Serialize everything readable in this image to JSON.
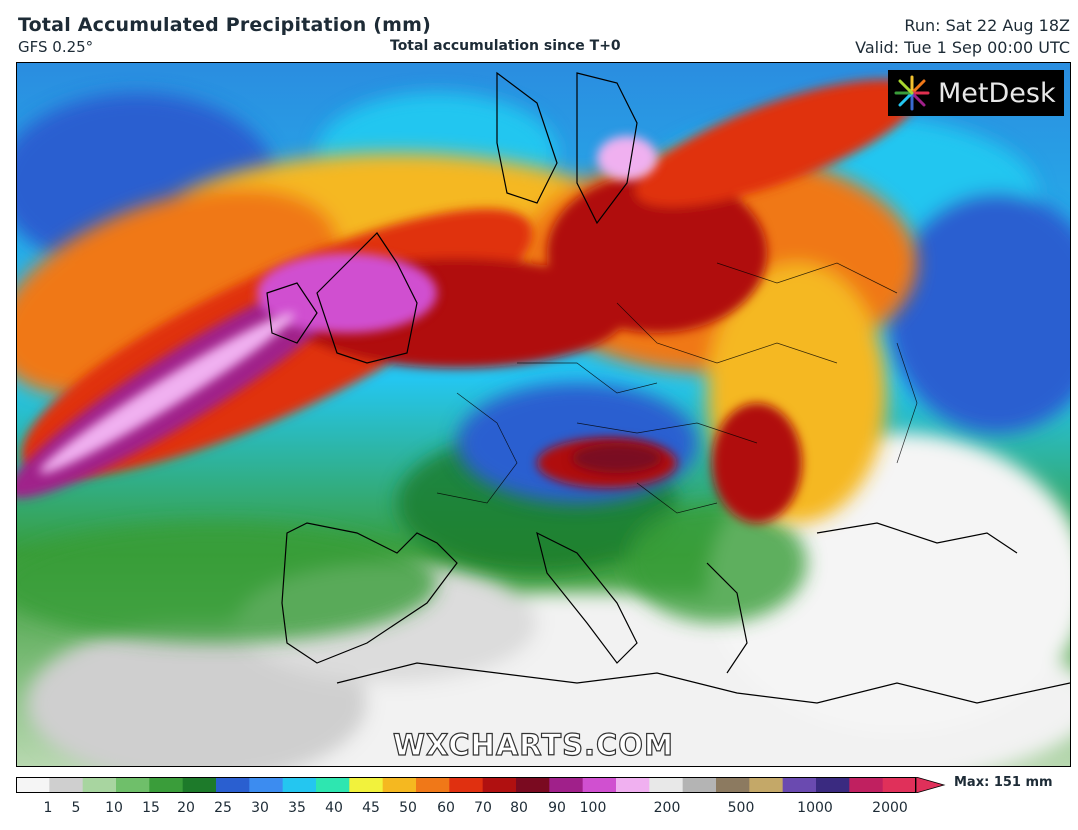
{
  "header": {
    "title": "Total Accumulated Precipitation (mm)",
    "model": "GFS 0.25°",
    "subtitle": "Total accumulation since T+0",
    "run": "Run: Sat 22 Aug 18Z",
    "valid": "Valid: Tue 1 Sep 00:00 UTC"
  },
  "logo": {
    "text": "MetDesk",
    "icon": "metdesk-starburst-icon"
  },
  "watermark": "WXCHARTS.COM",
  "colorbar": {
    "max_label": "Max: 151 mm",
    "ticks": [
      "1",
      "5",
      "10",
      "15",
      "20",
      "25",
      "30",
      "35",
      "40",
      "45",
      "50",
      "60",
      "70",
      "80",
      "90",
      "100",
      "200",
      "500",
      "1000",
      "2000"
    ],
    "colors": [
      "#f5f5f5",
      "#cfcfcf",
      "#a8d5a0",
      "#6fbf6a",
      "#3a9d3a",
      "#1d7a2a",
      "#2a5fd0",
      "#3c8cf0",
      "#24c6f0",
      "#2ee6b0",
      "#f2f23c",
      "#f5b820",
      "#f07818",
      "#e03010",
      "#b01010",
      "#7a0a20",
      "#a0208a",
      "#d050d0",
      "#f0b0f0",
      "#e8e8e8",
      "#b4b4b4",
      "#8c7a60",
      "#c4a868",
      "#6a4ab0",
      "#3a2a80",
      "#c02060",
      "#e0305a"
    ]
  },
  "map": {
    "region": "Europe",
    "palette": {
      "land": "#ffffff",
      "sea_low": "#8fc28a",
      "heavy": "#b01010",
      "extreme": "#a0208a",
      "peak": "#f0b0f0",
      "moderate": "#2a5fd0",
      "light": "#2ee6b0"
    }
  }
}
